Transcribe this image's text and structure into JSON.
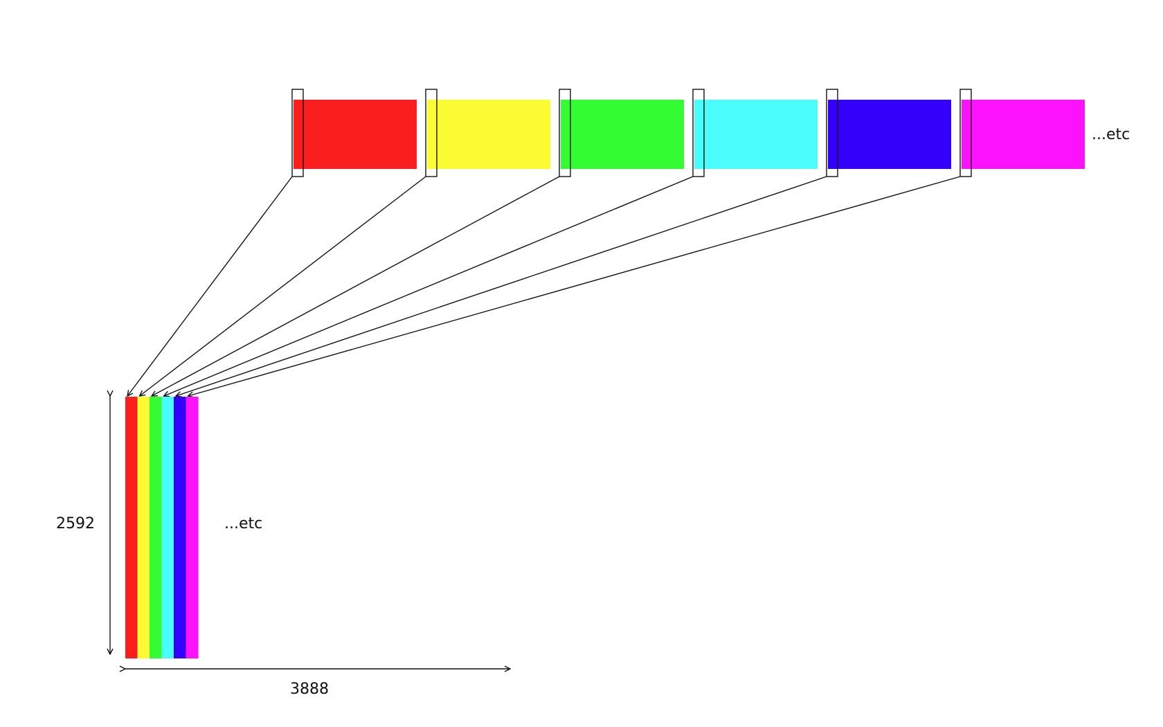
{
  "source_frames": [
    {
      "name": "red",
      "color": "#FA1E1E"
    },
    {
      "name": "yellow",
      "color": "#FCFC34"
    },
    {
      "name": "green",
      "color": "#33FC33"
    },
    {
      "name": "cyan",
      "color": "#4AFCFC"
    },
    {
      "name": "blue",
      "color": "#3300FA"
    },
    {
      "name": "magenta",
      "color": "#FC12FC"
    }
  ],
  "labels": {
    "top_etc": "...etc",
    "result_etc": "...etc",
    "height_value": "2592",
    "width_value": "3888"
  },
  "colors": {
    "outline": "#111111",
    "background": "#ffffff"
  }
}
